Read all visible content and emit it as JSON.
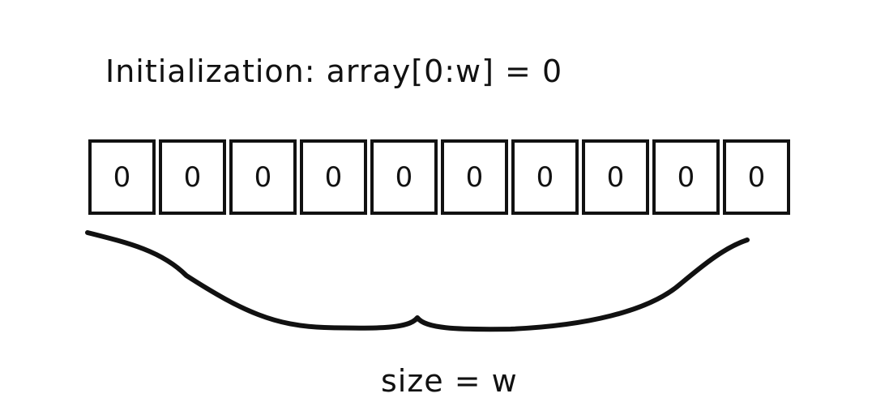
{
  "title": "Initialization: array[0:w] = 0",
  "array": {
    "cells": [
      "0",
      "0",
      "0",
      "0",
      "0",
      "0",
      "0",
      "0",
      "0",
      "0"
    ]
  },
  "brace_label": "size = w",
  "colors": {
    "ink": "#111111",
    "background": "#ffffff"
  }
}
